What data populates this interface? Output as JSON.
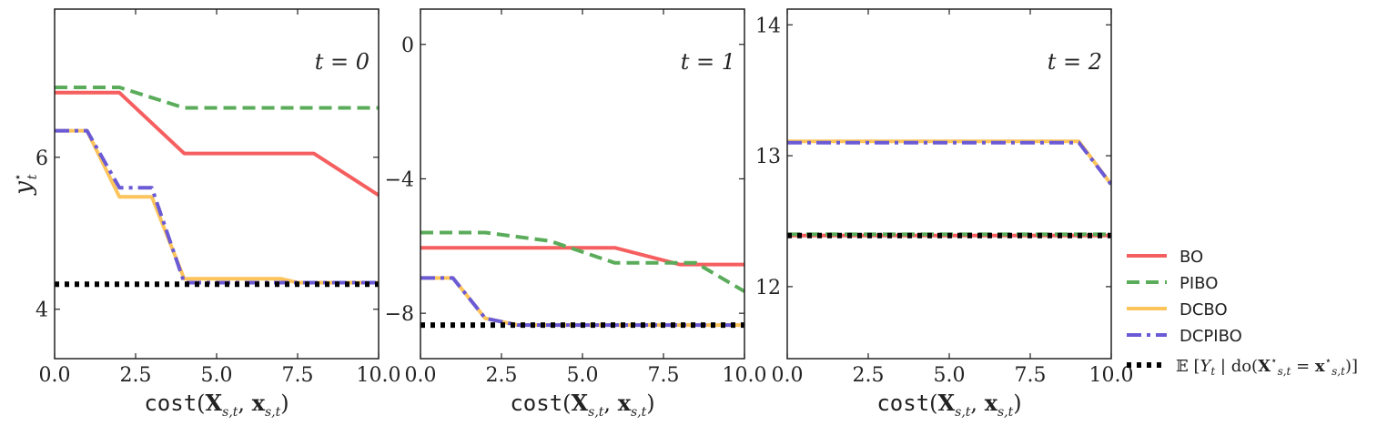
{
  "chart_data": [
    {
      "type": "line",
      "panel_label": "t = 0",
      "xlabel": "cost(X_{s,t}, x_{s,t})",
      "ylabel": "y*_t",
      "xlim": [
        0,
        10
      ],
      "ylim": [
        3.35,
        7.95
      ],
      "xticks": [
        0,
        2.5,
        5,
        7.5,
        10
      ],
      "xtick_labels": [
        "0.0",
        "2.5",
        "5.0",
        "7.5",
        "10.0"
      ],
      "yticks": [
        4,
        6
      ],
      "ytick_labels": [
        "4",
        "6"
      ],
      "series": [
        {
          "name": "BO",
          "x": [
            0,
            2,
            4,
            8,
            10
          ],
          "y": [
            6.85,
            6.85,
            6.05,
            6.05,
            5.5
          ]
        },
        {
          "name": "PIBO",
          "x": [
            0,
            2,
            4,
            10
          ],
          "y": [
            6.92,
            6.92,
            6.65,
            6.65
          ]
        },
        {
          "name": "DCBO",
          "x": [
            0,
            1,
            2,
            3,
            4,
            7,
            7.5,
            10
          ],
          "y": [
            6.35,
            6.35,
            5.48,
            5.48,
            4.4,
            4.4,
            4.35,
            4.35
          ]
        },
        {
          "name": "DCPIBO",
          "x": [
            0,
            1,
            2,
            3,
            4,
            10
          ],
          "y": [
            6.35,
            6.35,
            5.6,
            5.6,
            4.35,
            4.35
          ]
        },
        {
          "name": "E[Y_t | do(X*_{s,t} = x*_{s,t})]",
          "x": [
            0,
            10
          ],
          "y": [
            4.33,
            4.33
          ]
        }
      ]
    },
    {
      "type": "line",
      "panel_label": "t = 1",
      "xlabel": "cost(X_{s,t}, x_{s,t})",
      "xlim": [
        0,
        10
      ],
      "ylim": [
        -9.35,
        1.05
      ],
      "xticks": [
        0,
        2.5,
        5,
        7.5,
        10
      ],
      "xtick_labels": [
        "0.0",
        "2.5",
        "5.0",
        "7.5",
        "10.0"
      ],
      "yticks": [
        -8,
        -4,
        0
      ],
      "ytick_labels": [
        "−8",
        "−4",
        "0"
      ],
      "series": [
        {
          "name": "BO",
          "x": [
            0,
            6,
            8,
            10
          ],
          "y": [
            -6.05,
            -6.05,
            -6.55,
            -6.55
          ]
        },
        {
          "name": "PIBO",
          "x": [
            0,
            2,
            4,
            6,
            8.5,
            10
          ],
          "y": [
            -5.6,
            -5.6,
            -5.85,
            -6.5,
            -6.5,
            -7.35
          ]
        },
        {
          "name": "DCBO",
          "x": [
            0,
            1,
            2,
            3,
            10
          ],
          "y": [
            -6.95,
            -6.95,
            -8.15,
            -8.35,
            -8.35
          ]
        },
        {
          "name": "DCPIBO",
          "x": [
            0,
            1,
            2,
            3,
            10
          ],
          "y": [
            -6.95,
            -6.95,
            -8.15,
            -8.35,
            -8.35
          ]
        },
        {
          "name": "E[Y_t | do(X*_{s,t} = x*_{s,t})]",
          "x": [
            0,
            10
          ],
          "y": [
            -8.35,
            -8.35
          ]
        }
      ]
    },
    {
      "type": "line",
      "panel_label": "t = 2",
      "xlabel": "cost(X_{s,t}, x_{s,t})",
      "xlim": [
        0,
        10
      ],
      "ylim": [
        11.45,
        14.12
      ],
      "xticks": [
        0,
        2.5,
        5,
        7.5,
        10
      ],
      "xtick_labels": [
        "0.0",
        "2.5",
        "5.0",
        "7.5",
        "10.0"
      ],
      "yticks": [
        12,
        13,
        14
      ],
      "ytick_labels": [
        "12",
        "13",
        "14"
      ],
      "series": [
        {
          "name": "BO",
          "x": [
            0,
            10
          ],
          "y": [
            12.39,
            12.39
          ]
        },
        {
          "name": "PIBO",
          "x": [
            0,
            10
          ],
          "y": [
            12.4,
            12.4
          ]
        },
        {
          "name": "DCBO",
          "x": [
            0,
            9,
            10
          ],
          "y": [
            13.11,
            13.11,
            12.78
          ]
        },
        {
          "name": "DCPIBO",
          "x": [
            0,
            9,
            10
          ],
          "y": [
            13.1,
            13.1,
            12.78
          ]
        },
        {
          "name": "E[Y_t | do(X*_{s,t} = x*_{s,t})]",
          "x": [
            0,
            10
          ],
          "y": [
            12.39,
            12.39
          ]
        }
      ]
    }
  ],
  "styles": {
    "BO": {
      "color": "#f55f5f",
      "dash": "",
      "width": 4
    },
    "PIBO": {
      "color": "#5aac5a",
      "dash": "14 7",
      "width": 4
    },
    "DCBO": {
      "color": "#fcc45a",
      "dash": "",
      "width": 4
    },
    "DCPIBO": {
      "color": "#6a5ad6",
      "dash": "16 6 4 6",
      "width": 4
    },
    "E[Y_t | do(X*_{s,t} = x*_{s,t})]": {
      "color": "#000000",
      "dash": "5 6",
      "width": 6
    }
  },
  "legend": {
    "position": "lower-right-outside",
    "entries": [
      "BO",
      "PIBO",
      "DCBO",
      "DCPIBO",
      "E[Y_t | do(X*_{s,t} = x*_{s,t})]"
    ]
  }
}
